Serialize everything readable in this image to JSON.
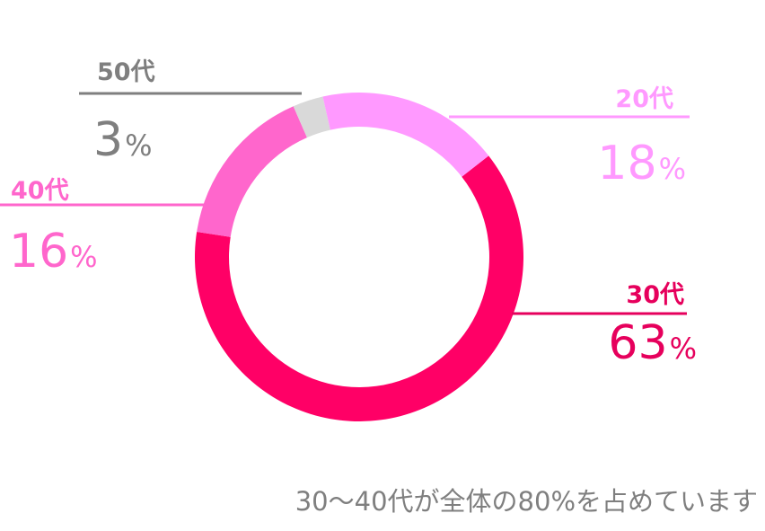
{
  "chart_data": {
    "type": "pie",
    "variant": "donut",
    "categories": [
      "30代",
      "40代",
      "50代",
      "20代"
    ],
    "values": [
      63,
      16,
      3,
      18
    ],
    "unit": "%",
    "colors": [
      "#ff0066",
      "#ff66cc",
      "#d9d9d9",
      "#ff99ff"
    ],
    "label_colors": [
      "#e6005c",
      "#ff66cc",
      "#7f7f7f",
      "#ff99ff"
    ],
    "labels": [
      {
        "category": "30代",
        "value": "63",
        "unit": "%"
      },
      {
        "category": "40代",
        "value": "16",
        "unit": "%"
      },
      {
        "category": "50代",
        "value": "3",
        "unit": "%"
      },
      {
        "category": "20代",
        "value": "18",
        "unit": "%"
      }
    ],
    "legend": "none",
    "grid": false
  },
  "caption": "30～40代が全体の80%を占めています"
}
